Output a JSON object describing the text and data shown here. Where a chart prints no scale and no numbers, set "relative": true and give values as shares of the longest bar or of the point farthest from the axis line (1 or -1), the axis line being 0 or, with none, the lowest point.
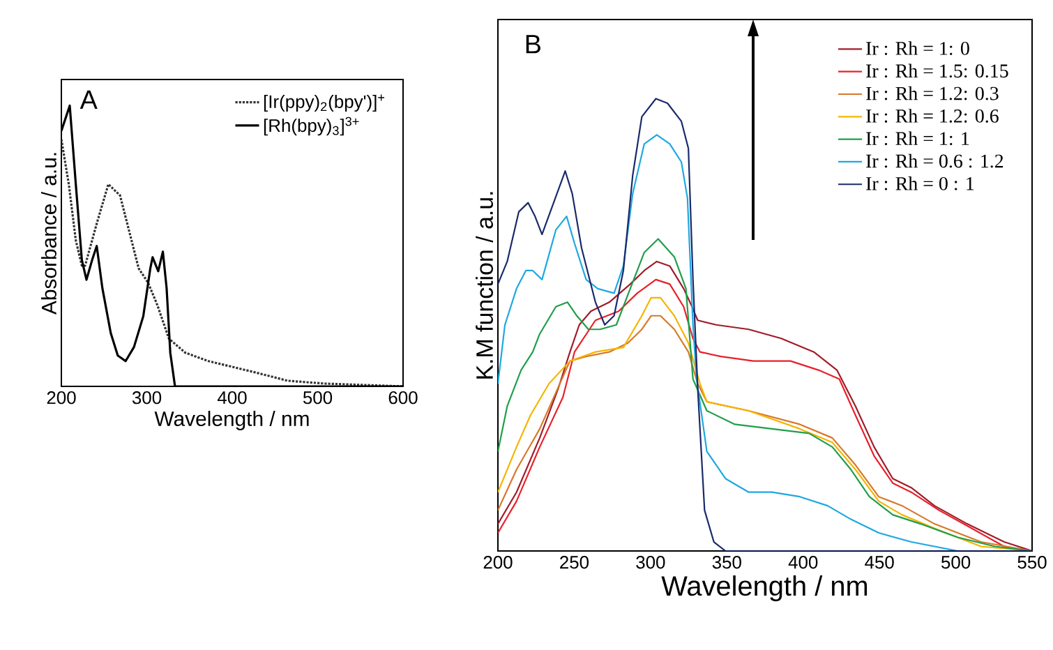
{
  "chart_data": [
    {
      "type": "line",
      "relative": true,
      "xlabel": "Wavelength / nm",
      "ylabel": "Absorbance / a.u.",
      "annotations": [
        "A"
      ],
      "xlim": [
        200,
        600
      ],
      "xticks": [
        200,
        300,
        400,
        500,
        600
      ],
      "legend": "top right",
      "tick_labels": "x",
      "series": [
        {
          "name": "[Ir(ppy)$_{2}$(bpy')]$^{+}$",
          "color": "#333333",
          "line_style": "dotted",
          "x": [
            200,
            208.7,
            216.9,
            224,
            227.8,
            241.4,
            255,
            268.7,
            279.6,
            290.5,
            301.4,
            312.3,
            325.9,
            345,
            372.2,
            399.5,
            426.7,
            464.9,
            508.5,
            600
          ],
          "values": [
            0.88,
            0.72,
            0.52,
            0.43,
            0.43,
            0.58,
            0.72,
            0.68,
            0.55,
            0.42,
            0.37,
            0.29,
            0.17,
            0.12,
            0.09,
            0.07,
            0.05,
            0.02,
            0.01,
            0
          ]
        },
        {
          "name": "[Rh(bpy)$_{3}$]$^{3+}$",
          "color": "#000000",
          "line_style": "solid",
          "x": [
            200,
            209.8,
            216.9,
            224,
            229.4,
            236,
            241.4,
            248,
            257.8,
            266,
            275.2,
            285,
            295.9,
            304.1,
            306.8,
            313.4,
            318.8,
            323.2,
            327.5,
            333,
            600
          ],
          "values": [
            0.91,
            1,
            0.72,
            0.45,
            0.38,
            0.45,
            0.5,
            0.35,
            0.19,
            0.11,
            0.09,
            0.14,
            0.25,
            0.42,
            0.46,
            0.41,
            0.48,
            0.35,
            0.12,
            0,
            0
          ]
        }
      ]
    },
    {
      "type": "line",
      "relative": true,
      "xlabel": "Wavelength / nm",
      "ylabel": "K.M function / a.u.",
      "annotations": [
        "B"
      ],
      "xlim": [
        200,
        550
      ],
      "xticks": [
        200,
        250,
        300,
        350,
        400,
        450,
        500,
        550
      ],
      "legend": "top right",
      "tick_labels": "x",
      "series": [
        {
          "name": "Ir : Rh = 1: 0",
          "color": "#a01c2a",
          "x": [
            200,
            212.2,
            227.4,
            239.6,
            247.2,
            253.3,
            260.9,
            273,
            286.7,
            295.9,
            304.1,
            312.6,
            321.7,
            327.2,
            330.9,
            343,
            364.3,
            385.6,
            407,
            422.1,
            434.3,
            446.5,
            458.7,
            470.8,
            486,
            507.4,
            531.7,
            550
          ],
          "values": [
            0.06,
            0.13,
            0.25,
            0.36,
            0.44,
            0.5,
            0.53,
            0.55,
            0.59,
            0.62,
            0.64,
            0.63,
            0.58,
            0.54,
            0.51,
            0.5,
            0.49,
            0.47,
            0.44,
            0.4,
            0.32,
            0.23,
            0.16,
            0.14,
            0.1,
            0.06,
            0.02,
            0
          ]
        },
        {
          "name": "Ir : Rh = 1.5: 0.15",
          "color": "#e8202a",
          "x": [
            200,
            212.2,
            227.4,
            242.6,
            250.2,
            263.9,
            279.1,
            291.3,
            303.5,
            312.6,
            321.7,
            327.8,
            332.4,
            346.1,
            367.4,
            391.7,
            410,
            423.7,
            434.3,
            446.5,
            458.7,
            470.8,
            489,
            510.4,
            531.7,
            550
          ],
          "values": [
            0.04,
            0.11,
            0.23,
            0.34,
            0.44,
            0.51,
            0.53,
            0.57,
            0.6,
            0.59,
            0.54,
            0.47,
            0.44,
            0.43,
            0.42,
            0.42,
            0.4,
            0.38,
            0.3,
            0.21,
            0.15,
            0.13,
            0.09,
            0.05,
            0.01,
            0
          ]
        },
        {
          "name": "Ir : Rh = 1.2: 0.3",
          "color": "#d8782a",
          "x": [
            200,
            212.2,
            227.4,
            247.2,
            257.8,
            273,
            285.2,
            294.3,
            300.4,
            306.5,
            315.6,
            324.8,
            330.9,
            336.9,
            364.3,
            397.8,
            419.1,
            434.3,
            449.5,
            464.8,
            486,
            516.5,
            550
          ],
          "values": [
            0.09,
            0.18,
            0.27,
            0.42,
            0.43,
            0.44,
            0.46,
            0.49,
            0.52,
            0.52,
            0.49,
            0.44,
            0.37,
            0.33,
            0.31,
            0.28,
            0.25,
            0.19,
            0.12,
            0.1,
            0.06,
            0.02,
            0
          ]
        },
        {
          "name": "Ir : Rh = 1.2: 0.6",
          "color": "#f5b400",
          "x": [
            200,
            212.2,
            221.3,
            233.5,
            247.2,
            263.9,
            282.2,
            294.3,
            300.4,
            306.5,
            315.6,
            324.8,
            332.4,
            336.9,
            364.3,
            397.8,
            419.1,
            434.3,
            449.5,
            464.8,
            486,
            516.5,
            550
          ],
          "values": [
            0.13,
            0.23,
            0.3,
            0.37,
            0.42,
            0.44,
            0.45,
            0.52,
            0.56,
            0.56,
            0.52,
            0.46,
            0.37,
            0.33,
            0.31,
            0.27,
            0.24,
            0.18,
            0.11,
            0.08,
            0.05,
            0.01,
            0
          ]
        },
        {
          "name": "Ir : Rh = 1: 1",
          "color": "#1f9e4a",
          "x": [
            200,
            206.1,
            215.2,
            222.8,
            227.4,
            238,
            245.6,
            251.7,
            259.3,
            266.9,
            277.6,
            286.7,
            295.9,
            305,
            315.6,
            323.2,
            327.8,
            336.9,
            355.2,
            379.5,
            403.9,
            419.1,
            431.3,
            443.4,
            458.7,
            476.9,
            501.3,
            525.6,
            550
          ],
          "values": [
            0.22,
            0.32,
            0.4,
            0.44,
            0.48,
            0.54,
            0.55,
            0.52,
            0.49,
            0.49,
            0.5,
            0.58,
            0.66,
            0.69,
            0.65,
            0.58,
            0.38,
            0.31,
            0.28,
            0.27,
            0.26,
            0.23,
            0.18,
            0.12,
            0.08,
            0.06,
            0.03,
            0.01,
            0
          ]
        },
        {
          "name": "Ir : Rh = 0.6 : 1.2",
          "color": "#1ea8e0",
          "x": [
            200,
            204.6,
            212.2,
            218.3,
            222.8,
            228.9,
            238,
            245,
            250.2,
            257.8,
            265.4,
            276.1,
            282.2,
            288.3,
            295.9,
            304.1,
            312.6,
            320.2,
            324.2,
            327.8,
            330.2,
            336.9,
            349.1,
            364.3,
            379.5,
            397.8,
            416,
            431.3,
            449.5,
            470.8,
            501.3,
            550
          ],
          "values": [
            0.37,
            0.5,
            0.58,
            0.62,
            0.62,
            0.6,
            0.71,
            0.74,
            0.68,
            0.6,
            0.58,
            0.57,
            0.63,
            0.79,
            0.9,
            0.92,
            0.9,
            0.86,
            0.78,
            0.5,
            0.38,
            0.22,
            0.16,
            0.13,
            0.13,
            0.12,
            0.1,
            0.07,
            0.04,
            0.02,
            0,
            0
          ]
        },
        {
          "name": "Ir : Rh = 0 : 1",
          "color": "#1a2a6a",
          "x": [
            200,
            206.1,
            213.7,
            219.8,
            224.3,
            228.9,
            236.5,
            244.1,
            248.7,
            254.8,
            263.9,
            270,
            276.1,
            282.2,
            288.3,
            294.3,
            303.5,
            311.1,
            320.2,
            324.8,
            327.8,
            330.9,
            335.4,
            341.5,
            349.1,
            550
          ],
          "values": [
            0.59,
            0.64,
            0.75,
            0.77,
            0.74,
            0.7,
            0.77,
            0.84,
            0.79,
            0.67,
            0.55,
            0.5,
            0.52,
            0.62,
            0.83,
            0.96,
            1,
            0.99,
            0.95,
            0.89,
            0.6,
            0.36,
            0.09,
            0.02,
            0,
            0
          ]
        }
      ]
    }
  ]
}
